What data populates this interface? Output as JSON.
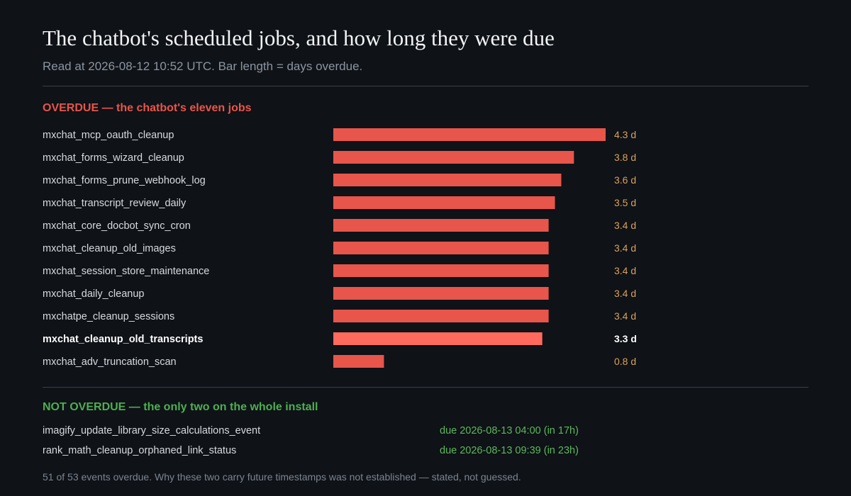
{
  "header": {
    "title": "The chatbot's scheduled jobs, and how long they were due",
    "subtitle": "Read at 2026-08-12 10:52 UTC. Bar length = days overdue."
  },
  "colors": {
    "background": "#0f1217",
    "bar": "#e8554a",
    "bar_highlight": "#ff6a5c",
    "overdue_heading": "#e8554a",
    "value_text": "#d9a25a",
    "not_overdue_heading": "#4caf50",
    "due_text": "#5cb85c"
  },
  "overdue_section": {
    "heading": "OVERDUE — the chatbot's eleven jobs"
  },
  "chart_data": {
    "type": "bar",
    "orientation": "horizontal",
    "categories": [
      "mxchat_mcp_oauth_cleanup",
      "mxchat_forms_wizard_cleanup",
      "mxchat_forms_prune_webhook_log",
      "mxchat_transcript_review_daily",
      "mxchat_core_docbot_sync_cron",
      "mxchat_cleanup_old_images",
      "mxchat_session_store_maintenance",
      "mxchat_daily_cleanup",
      "mxchatpe_cleanup_sessions",
      "mxchat_cleanup_old_transcripts",
      "mxchat_adv_truncation_scan"
    ],
    "values": [
      4.3,
      3.8,
      3.6,
      3.5,
      3.4,
      3.4,
      3.4,
      3.4,
      3.4,
      3.3,
      0.8
    ],
    "value_labels": [
      "4.3 d",
      "3.8 d",
      "3.6 d",
      "3.5 d",
      "3.4 d",
      "3.4 d",
      "3.4 d",
      "3.4 d",
      "3.4 d",
      "3.3 d",
      "0.8 d"
    ],
    "highlighted": "mxchat_cleanup_old_transcripts",
    "title": "",
    "xlabel": "",
    "ylabel": "",
    "grid": false,
    "legend": "none"
  },
  "not_overdue_section": {
    "heading": "NOT OVERDUE — the only two on the whole install",
    "rows": [
      {
        "name": "imagify_update_library_size_calculations_event",
        "due": "due 2026-08-13 04:00 (in 17h)"
      },
      {
        "name": "rank_math_cleanup_orphaned_link_status",
        "due": "due 2026-08-13 09:39 (in 23h)"
      }
    ]
  },
  "footnote": "51 of 53 events overdue. Why these two carry future timestamps was not established — stated, not guessed."
}
